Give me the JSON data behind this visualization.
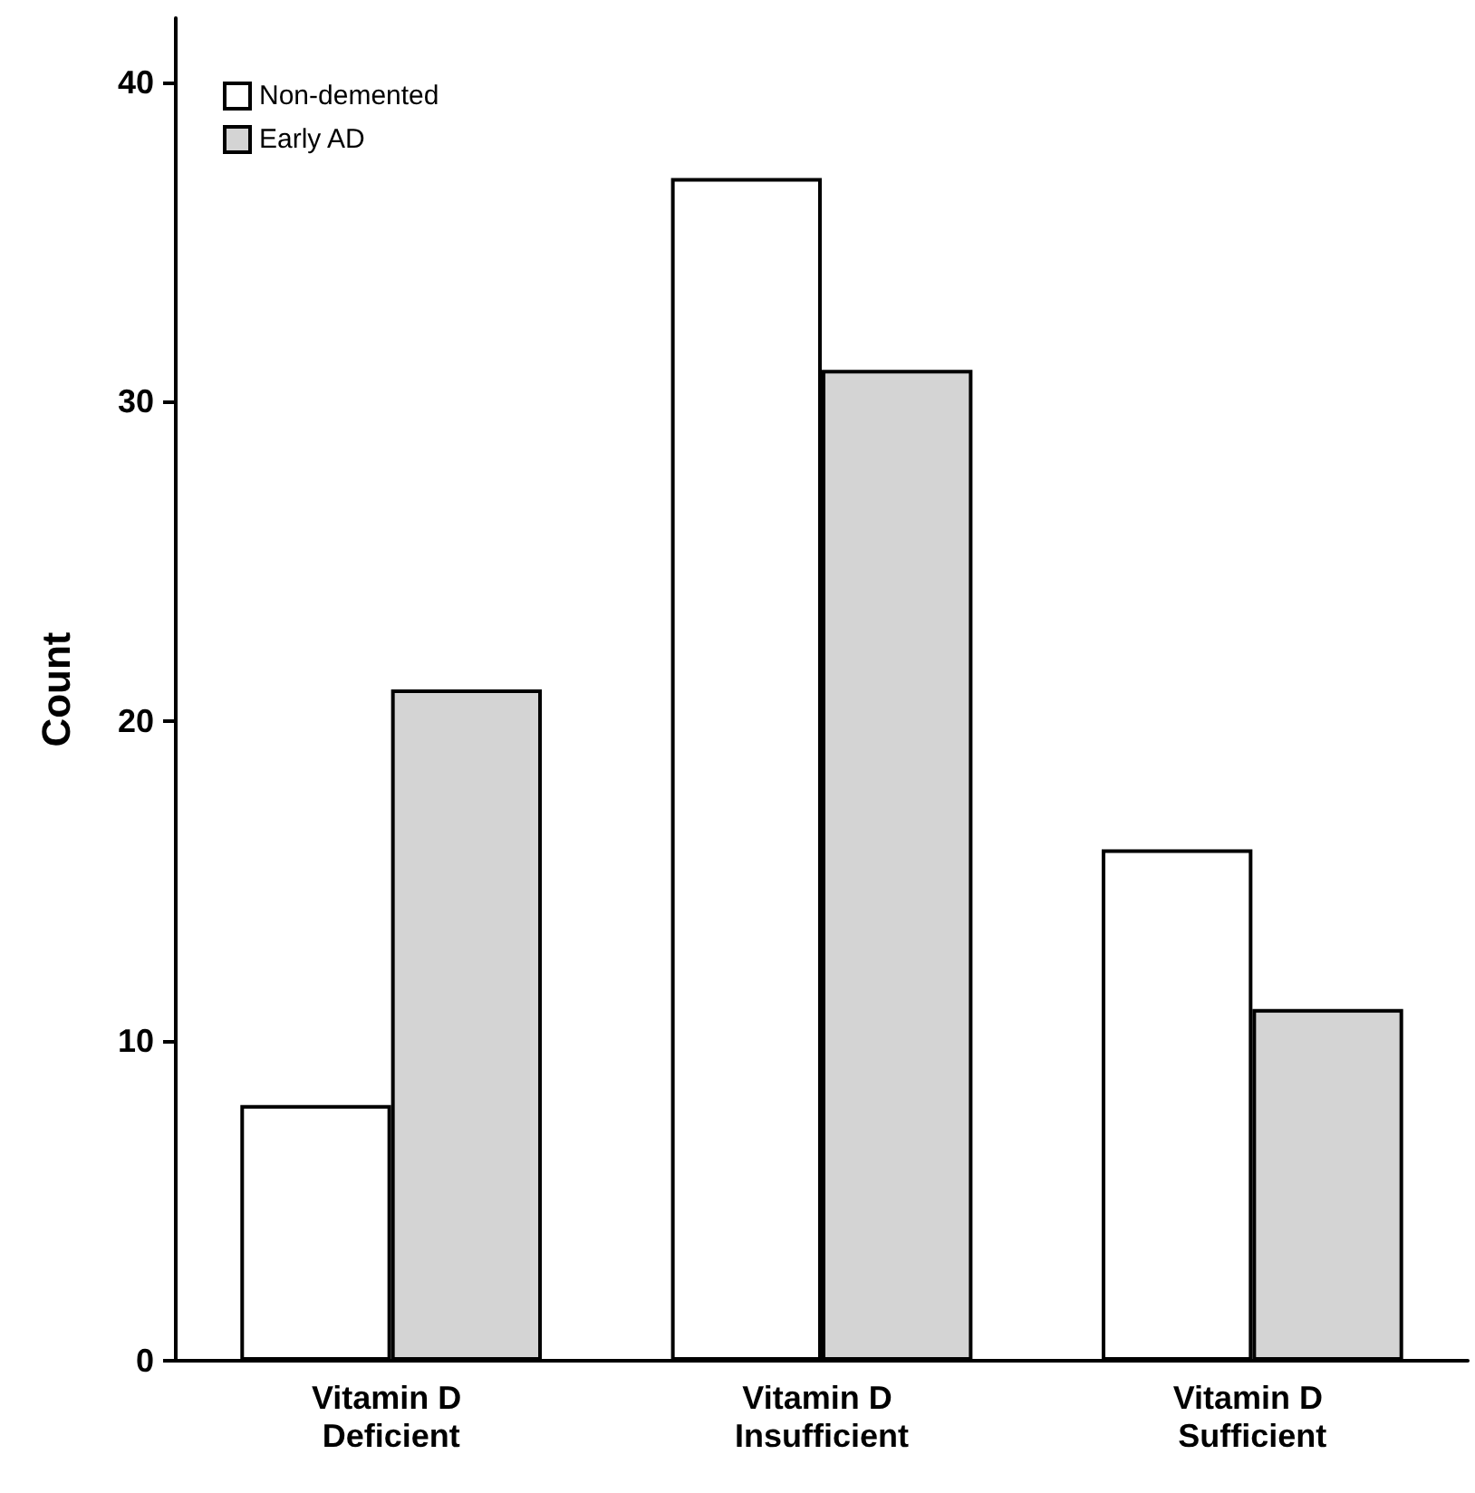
{
  "chart_data": {
    "type": "bar",
    "ylabel": "Count",
    "categories": [
      "Vitamin D Deficient",
      "Vitamin D Insufficient",
      "Vitamin D Sufficient"
    ],
    "series": [
      {
        "name": "Non-demented",
        "color": "#ffffff",
        "values": [
          8,
          37,
          16
        ]
      },
      {
        "name": "Early AD",
        "color": "#d4d4d4",
        "values": [
          21,
          31,
          11
        ]
      }
    ],
    "ylim": [
      0,
      42
    ],
    "yticks": [
      0,
      10,
      20,
      30,
      40
    ],
    "grid": false,
    "legend": "top left"
  }
}
